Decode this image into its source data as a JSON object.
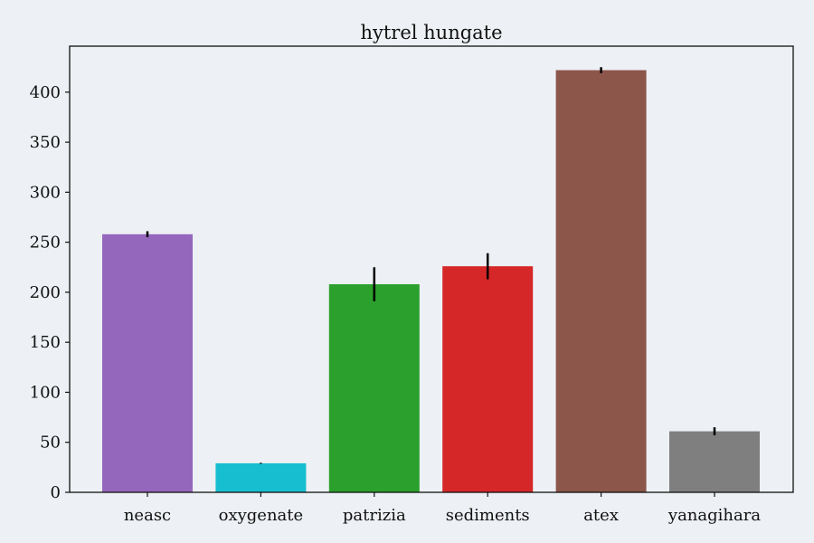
{
  "chart_data": {
    "type": "bar",
    "title": "hytrel hungate",
    "xlabel": "",
    "ylabel": "",
    "categories": [
      "neasc",
      "oxygenate",
      "patrizia",
      "sediments",
      "atex",
      "yanagihara"
    ],
    "values": [
      258,
      29,
      208,
      226,
      422,
      61
    ],
    "errors": [
      3,
      0.5,
      17,
      13,
      3,
      4
    ],
    "colors": [
      "#9467bd",
      "#17becf",
      "#2ca02c",
      "#d62728",
      "#8c564b",
      "#7f7f7f"
    ],
    "ylim": [
      0,
      446
    ],
    "yticks": [
      0,
      50,
      100,
      150,
      200,
      250,
      300,
      350,
      400
    ],
    "grid": false,
    "legend": "none",
    "background": "#edf0f4"
  }
}
